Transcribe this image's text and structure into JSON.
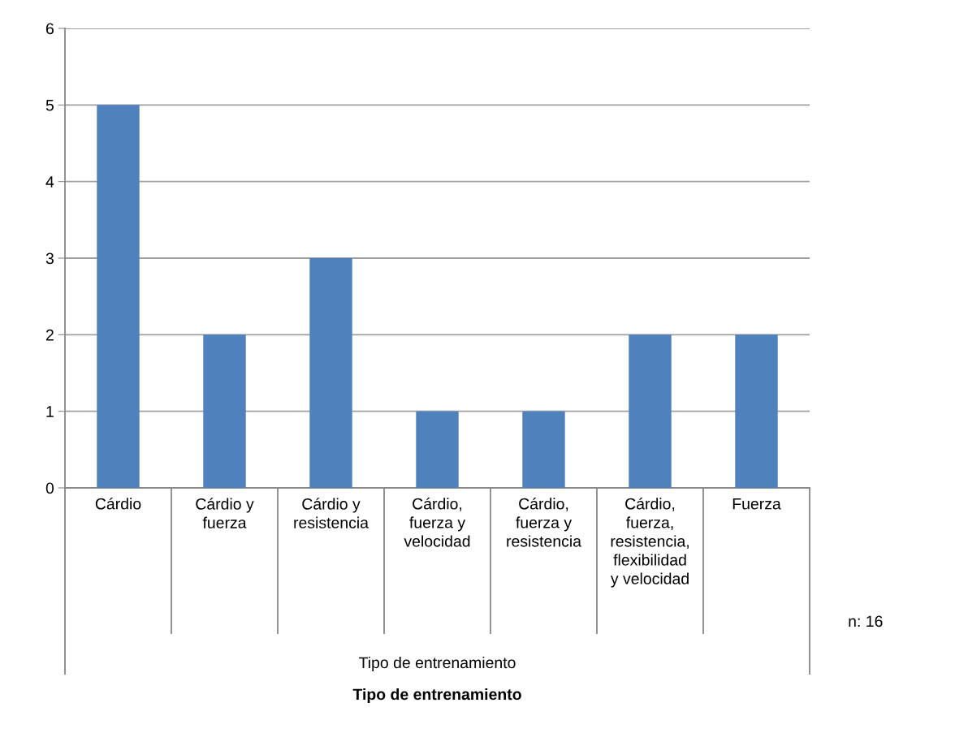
{
  "chart_data": {
    "type": "bar",
    "categories": [
      "Cárdio",
      "Cárdio y fuerza",
      "Cárdio y resistencia",
      "Cárdio, fuerza y velocidad",
      "Cárdio, fuerza y resistencia",
      "Cárdio, fuerza, resistencia, flexibilidad y velocidad",
      "Fuerza"
    ],
    "values": [
      5,
      2,
      3,
      1,
      1,
      2,
      2
    ],
    "color": "#4f81bd",
    "ylim": [
      0,
      6
    ],
    "yticks": [
      0,
      1,
      2,
      3,
      4,
      5,
      6
    ],
    "grid": "y",
    "annotations": [
      "Tipo de entrenamiento",
      "n: 16",
      "Tipo de entrenamiento"
    ]
  }
}
